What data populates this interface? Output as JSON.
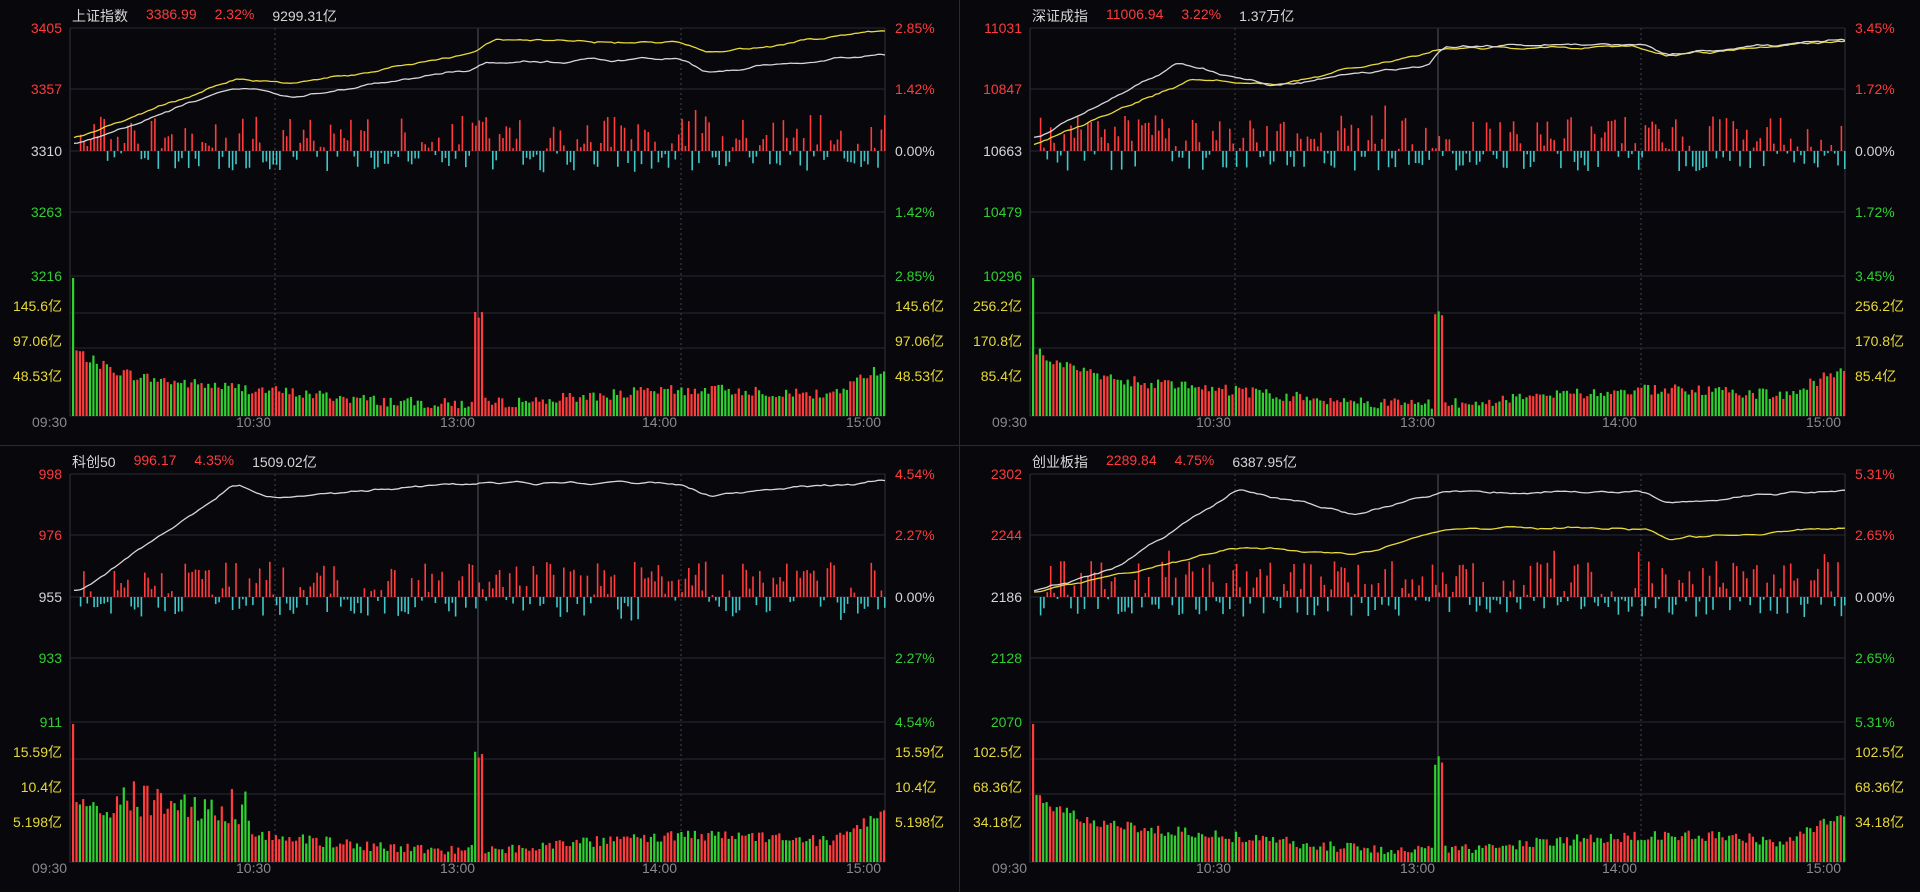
{
  "panels": [
    {
      "id": "shanghai",
      "name": "上证指数",
      "price": "3386.99",
      "change_pct": "2.32%",
      "amount": "9299.31亿",
      "has_yellow_line": true,
      "price_axis_left": [
        "3405",
        "3357",
        "3310",
        "3263",
        "3216"
      ],
      "price_axis_right": [
        "2.85%",
        "1.42%",
        "0.00%",
        "1.42%",
        "2.85%"
      ],
      "volume_axis_left": [
        "145.6亿",
        "97.06亿",
        "48.53亿"
      ],
      "volume_axis_right": [
        "145.6亿",
        "97.06亿",
        "48.53亿"
      ],
      "time_labels": [
        "09:30",
        "10:30",
        "13:00",
        "14:00",
        "15:00"
      ],
      "white_level_end": 0.81,
      "yellow_level_end": 1.0
    },
    {
      "id": "shenzhen",
      "name": "深证成指",
      "price": "11006.94",
      "change_pct": "3.22%",
      "amount": "1.37万亿",
      "has_yellow_line": true,
      "price_axis_left": [
        "11031",
        "10847",
        "10663",
        "10479",
        "10296"
      ],
      "price_axis_right": [
        "3.45%",
        "1.72%",
        "0.00%",
        "1.72%",
        "3.45%"
      ],
      "volume_axis_left": [
        "256.2亿",
        "170.8亿",
        "85.4亿"
      ],
      "volume_axis_right": [
        "256.2亿",
        "170.8亿",
        "85.4亿"
      ],
      "time_labels": [
        "09:30",
        "10:30",
        "13:00",
        "14:00",
        "15:00"
      ],
      "white_level_end": 0.93,
      "yellow_level_end": 0.91
    },
    {
      "id": "star50",
      "name": "科创50",
      "price": "996.17",
      "change_pct": "4.35%",
      "amount": "1509.02亿",
      "has_yellow_line": false,
      "price_axis_left": [
        "998",
        "976",
        "955",
        "933",
        "911"
      ],
      "price_axis_right": [
        "4.54%",
        "2.27%",
        "0.00%",
        "2.27%",
        "4.54%"
      ],
      "volume_axis_left": [
        "15.59亿",
        "10.4亿",
        "5.198亿"
      ],
      "volume_axis_right": [
        "15.59亿",
        "10.4亿",
        "5.198亿"
      ],
      "time_labels": [
        "09:30",
        "10:30",
        "13:00",
        "14:00",
        "15:00"
      ],
      "white_level_end": 0.96,
      "yellow_level_end": 0
    },
    {
      "id": "chinext",
      "name": "创业板指",
      "price": "2289.84",
      "change_pct": "4.75%",
      "amount": "6387.95亿",
      "has_yellow_line": true,
      "price_axis_left": [
        "2302",
        "2244",
        "2186",
        "2128",
        "2070"
      ],
      "price_axis_right": [
        "5.31%",
        "2.65%",
        "0.00%",
        "2.65%",
        "5.31%"
      ],
      "volume_axis_left": [
        "102.5亿",
        "68.36亿",
        "34.18亿"
      ],
      "volume_axis_right": [
        "102.5亿",
        "68.36亿",
        "34.18亿"
      ],
      "time_labels": [
        "09:30",
        "10:30",
        "13:00",
        "14:00",
        "15:00"
      ],
      "white_level_end": 0.89,
      "yellow_level_end": 0.57
    }
  ],
  "colors": {
    "background": "#07070c",
    "grid": "#2a2a33",
    "up": "#ff3b3b",
    "down": "#2fd02f",
    "neutral": "#d6d6d6",
    "yellow": "#e8d93a",
    "cyan": "#3fc6c6",
    "time_gray": "#8a8a8a"
  }
}
